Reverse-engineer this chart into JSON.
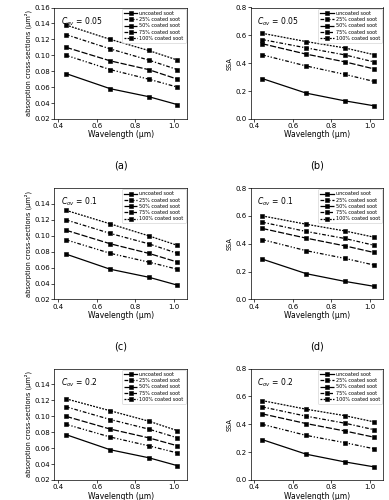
{
  "wavelengths": [
    0.44,
    0.67,
    0.87,
    1.02
  ],
  "panels": [
    {
      "label": "a",
      "cov": "$C_{ov}$ = 0.05",
      "type": "absorption",
      "ylabel": "absorption cross-sections (μm²)",
      "ylim": [
        0.02,
        0.16
      ],
      "yticks": [
        0.02,
        0.04,
        0.06,
        0.08,
        0.1,
        0.12,
        0.14,
        0.16
      ],
      "series": [
        [
          0.077,
          0.058,
          0.048,
          0.038
        ],
        [
          0.1,
          0.082,
          0.07,
          0.06
        ],
        [
          0.11,
          0.093,
          0.082,
          0.07
        ],
        [
          0.126,
          0.108,
          0.094,
          0.082
        ],
        [
          0.138,
          0.12,
          0.106,
          0.094
        ]
      ]
    },
    {
      "label": "b",
      "cov": "$C_{ov}$ = 0.05",
      "type": "ssa",
      "ylabel": "SSA",
      "ylim": [
        0.0,
        0.8
      ],
      "yticks": [
        0.0,
        0.2,
        0.4,
        0.6,
        0.8
      ],
      "series": [
        [
          0.29,
          0.185,
          0.13,
          0.095
        ],
        [
          0.46,
          0.38,
          0.32,
          0.27
        ],
        [
          0.54,
          0.465,
          0.41,
          0.36
        ],
        [
          0.57,
          0.51,
          0.46,
          0.41
        ],
        [
          0.615,
          0.555,
          0.51,
          0.462
        ]
      ]
    },
    {
      "label": "c",
      "cov": "$C_{ov}$ = 0.1",
      "type": "absorption",
      "ylabel": "absorption cross-sections (μm²)",
      "ylim": [
        0.02,
        0.16
      ],
      "yticks": [
        0.02,
        0.04,
        0.06,
        0.08,
        0.1,
        0.12,
        0.14
      ],
      "series": [
        [
          0.077,
          0.058,
          0.048,
          0.038
        ],
        [
          0.095,
          0.078,
          0.067,
          0.058
        ],
        [
          0.107,
          0.09,
          0.078,
          0.067
        ],
        [
          0.12,
          0.103,
          0.09,
          0.078
        ],
        [
          0.132,
          0.115,
          0.1,
          0.088
        ]
      ]
    },
    {
      "label": "d",
      "cov": "$C_{ov}$ = 0.1",
      "type": "ssa",
      "ylabel": "SSA",
      "ylim": [
        0.0,
        0.8
      ],
      "yticks": [
        0.0,
        0.2,
        0.4,
        0.6,
        0.8
      ],
      "series": [
        [
          0.29,
          0.185,
          0.13,
          0.095
        ],
        [
          0.43,
          0.35,
          0.295,
          0.248
        ],
        [
          0.51,
          0.44,
          0.385,
          0.338
        ],
        [
          0.555,
          0.488,
          0.438,
          0.39
        ],
        [
          0.6,
          0.54,
          0.492,
          0.448
        ]
      ]
    },
    {
      "label": "e",
      "cov": "$C_{ov}$ = 0.2",
      "type": "absorption",
      "ylabel": "absorption cross-sections (μm²)",
      "ylim": [
        0.02,
        0.16
      ],
      "yticks": [
        0.02,
        0.04,
        0.06,
        0.08,
        0.1,
        0.12,
        0.14
      ],
      "series": [
        [
          0.077,
          0.058,
          0.048,
          0.038
        ],
        [
          0.09,
          0.074,
          0.063,
          0.054
        ],
        [
          0.1,
          0.084,
          0.073,
          0.063
        ],
        [
          0.112,
          0.096,
          0.084,
          0.073
        ],
        [
          0.122,
          0.107,
          0.094,
          0.082
        ]
      ]
    },
    {
      "label": "f",
      "cov": "$C_{ov}$ = 0.2",
      "type": "ssa",
      "ylabel": "SSA",
      "ylim": [
        0.0,
        0.8
      ],
      "yticks": [
        0.0,
        0.2,
        0.4,
        0.6,
        0.8
      ],
      "series": [
        [
          0.29,
          0.185,
          0.13,
          0.095
        ],
        [
          0.4,
          0.32,
          0.268,
          0.225
        ],
        [
          0.475,
          0.405,
          0.352,
          0.308
        ],
        [
          0.525,
          0.458,
          0.408,
          0.362
        ],
        [
          0.57,
          0.508,
          0.462,
          0.418
        ]
      ]
    }
  ],
  "legend_labels": [
    "uncoated soot",
    "25% coated soot",
    "50% coated soot",
    "75% coated soot",
    "100% coated soot"
  ]
}
